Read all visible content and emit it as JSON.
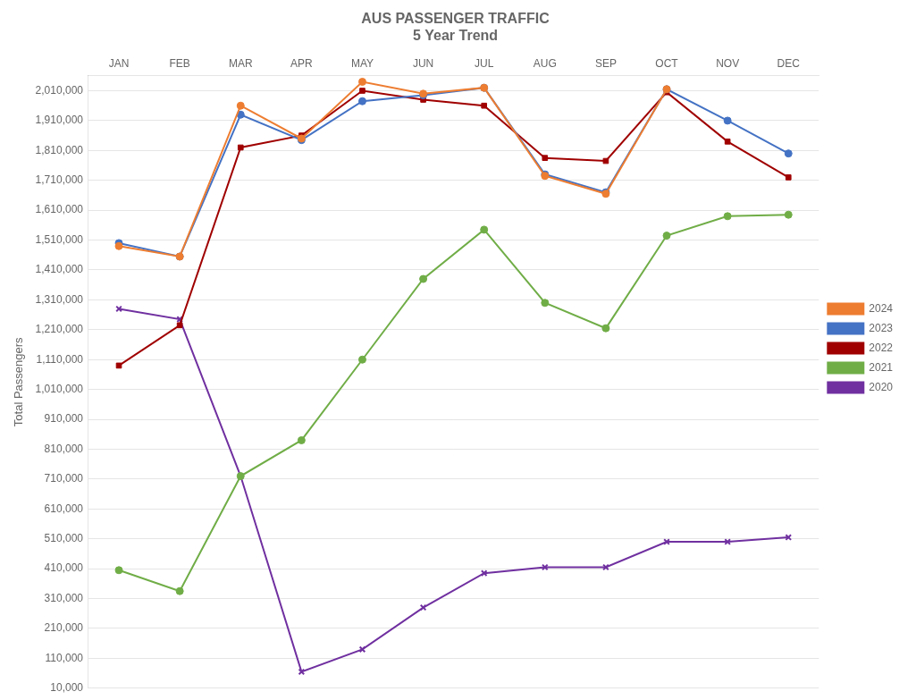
{
  "chart_data": {
    "type": "line",
    "title": "AUS PASSENGER TRAFFIC",
    "subtitle": "5 Year Trend",
    "ylabel": "Total Passengers",
    "categories": [
      "JAN",
      "FEB",
      "MAR",
      "APR",
      "MAY",
      "JUN",
      "JUL",
      "AUG",
      "SEP",
      "OCT",
      "NOV",
      "DEC"
    ],
    "series": [
      {
        "name": "2024",
        "color": "#ED7D31",
        "marker": "circle",
        "line_style": "solid",
        "values": [
          1490000,
          1455000,
          1960000,
          1850000,
          2040000,
          2000000,
          2020000,
          1725000,
          1665000,
          2015000,
          null,
          null
        ]
      },
      {
        "name": "2023",
        "color": "#4472C4",
        "marker": "circle",
        "line_style": "solid",
        "values": [
          1500000,
          1455000,
          1930000,
          1845000,
          1975000,
          1995000,
          2020000,
          1730000,
          1670000,
          2015000,
          1910000,
          1800000
        ]
      },
      {
        "name": "2022",
        "color": "#A00000",
        "marker": "square",
        "line_style": "solid",
        "values": [
          1090000,
          1225000,
          1820000,
          1860000,
          2010000,
          1980000,
          1960000,
          1785000,
          1775000,
          2005000,
          1840000,
          1720000
        ]
      },
      {
        "name": "2021",
        "color": "#70AD47",
        "marker": "circle",
        "line_style": "solid",
        "values": [
          405000,
          335000,
          720000,
          840000,
          1110000,
          1380000,
          1545000,
          1300000,
          1215000,
          1525000,
          1590000,
          1595000
        ]
      },
      {
        "name": "2020",
        "color": "#7030A0",
        "marker": "x",
        "line_style": "solid",
        "values": [
          1280000,
          1245000,
          720000,
          65000,
          140000,
          280000,
          395000,
          415000,
          415000,
          500000,
          500000,
          515000
        ]
      }
    ],
    "ylim": [
      10000,
      2060000
    ],
    "yticks": [
      {
        "value": 10000,
        "label": "10,000"
      },
      {
        "value": 110000,
        "label": "110,000"
      },
      {
        "value": 210000,
        "label": "210,000"
      },
      {
        "value": 310000,
        "label": "310,000"
      },
      {
        "value": 410000,
        "label": "410,000"
      },
      {
        "value": 510000,
        "label": "510,000"
      },
      {
        "value": 610000,
        "label": "610,000"
      },
      {
        "value": 710000,
        "label": "710,000"
      },
      {
        "value": 810000,
        "label": "810,000"
      },
      {
        "value": 910000,
        "label": "910,000"
      },
      {
        "value": 1010000,
        "label": "1,010,000"
      },
      {
        "value": 1110000,
        "label": "1,110,000"
      },
      {
        "value": 1210000,
        "label": "1,210,000"
      },
      {
        "value": 1310000,
        "label": "1,310,000"
      },
      {
        "value": 1410000,
        "label": "1,410,000"
      },
      {
        "value": 1510000,
        "label": "1,510,000"
      },
      {
        "value": 1610000,
        "label": "1,610,000"
      },
      {
        "value": 1710000,
        "label": "1,710,000"
      },
      {
        "value": 1810000,
        "label": "1,810,000"
      },
      {
        "value": 1910000,
        "label": "1,910,000"
      },
      {
        "value": 2010000,
        "label": "2,010,000"
      }
    ],
    "grid": "y",
    "legend": "right"
  }
}
